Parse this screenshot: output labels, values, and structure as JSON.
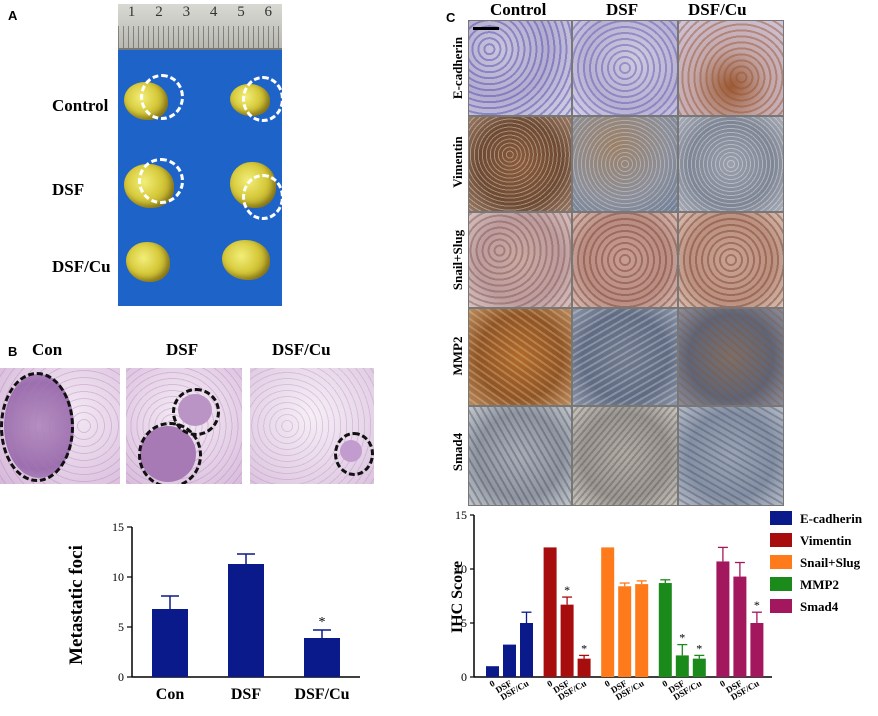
{
  "panels": {
    "a": {
      "letter": "A",
      "rows": [
        "Control",
        "DSF",
        "DSF/Cu"
      ],
      "ruler_ticks": [
        "1",
        "2",
        "3",
        "4",
        "5",
        "6"
      ]
    },
    "b": {
      "letter": "B",
      "headers": [
        "Con",
        "DSF",
        "DSF/Cu"
      ]
    },
    "c": {
      "letter": "C",
      "headers": [
        "Control",
        "DSF",
        "DSF/Cu"
      ],
      "rows": [
        "E-cadherin",
        "Vimentin",
        "Snail+Slug",
        "MMP2",
        "Smad4"
      ]
    }
  },
  "colors": {
    "photo_background": "#1e63c8",
    "navy": "#0b1a8a",
    "ecad": "#0b1a8a",
    "vim": "#a80d0d",
    "snail": "#ff7a1a",
    "mmp2": "#1a8a1a",
    "smad4": "#a3175e"
  },
  "chart_data": [
    {
      "type": "bar",
      "categories": [
        "Con",
        "DSF",
        "DSF/Cu"
      ],
      "values": [
        6.8,
        11.3,
        3.9
      ],
      "errors": [
        1.3,
        1.0,
        0.8
      ],
      "significance": [
        "",
        "",
        "*"
      ],
      "ylabel": "Metastatic foci",
      "ylim": [
        0,
        15
      ],
      "yticks": [
        "0",
        "5",
        "10",
        "15"
      ]
    },
    {
      "type": "bar",
      "groups": [
        "E-cadherin",
        "Vimentin",
        "Snail+Slug",
        "MMP2",
        "Smad4"
      ],
      "categories": [
        "0",
        "DSF",
        "DSF/Cu"
      ],
      "series": [
        {
          "name": "E-cadherin",
          "values": [
            1.0,
            3.0,
            5.0
          ],
          "errors": [
            0.0,
            0.0,
            1.0
          ],
          "significance": [
            "",
            "",
            ""
          ]
        },
        {
          "name": "Vimentin",
          "values": [
            12.0,
            6.7,
            1.7
          ],
          "errors": [
            0.0,
            0.7,
            0.3
          ],
          "significance": [
            "",
            "*",
            "*"
          ]
        },
        {
          "name": "Snail+Slug",
          "values": [
            12.0,
            8.4,
            8.6
          ],
          "errors": [
            0.0,
            0.3,
            0.3
          ],
          "significance": [
            "",
            "",
            ""
          ]
        },
        {
          "name": "MMP2",
          "values": [
            8.7,
            2.0,
            1.7
          ],
          "errors": [
            0.3,
            1.0,
            0.3
          ],
          "significance": [
            "",
            "*",
            "*"
          ]
        },
        {
          "name": "Smad4",
          "values": [
            10.7,
            9.3,
            5.0
          ],
          "errors": [
            1.3,
            1.3,
            1.0
          ],
          "significance": [
            "",
            "",
            "*"
          ]
        }
      ],
      "ylabel": "IHC Score",
      "ylim": [
        0,
        15
      ],
      "yticks": [
        "0",
        "5",
        "10",
        "15"
      ],
      "legend_position": "top-right"
    }
  ]
}
